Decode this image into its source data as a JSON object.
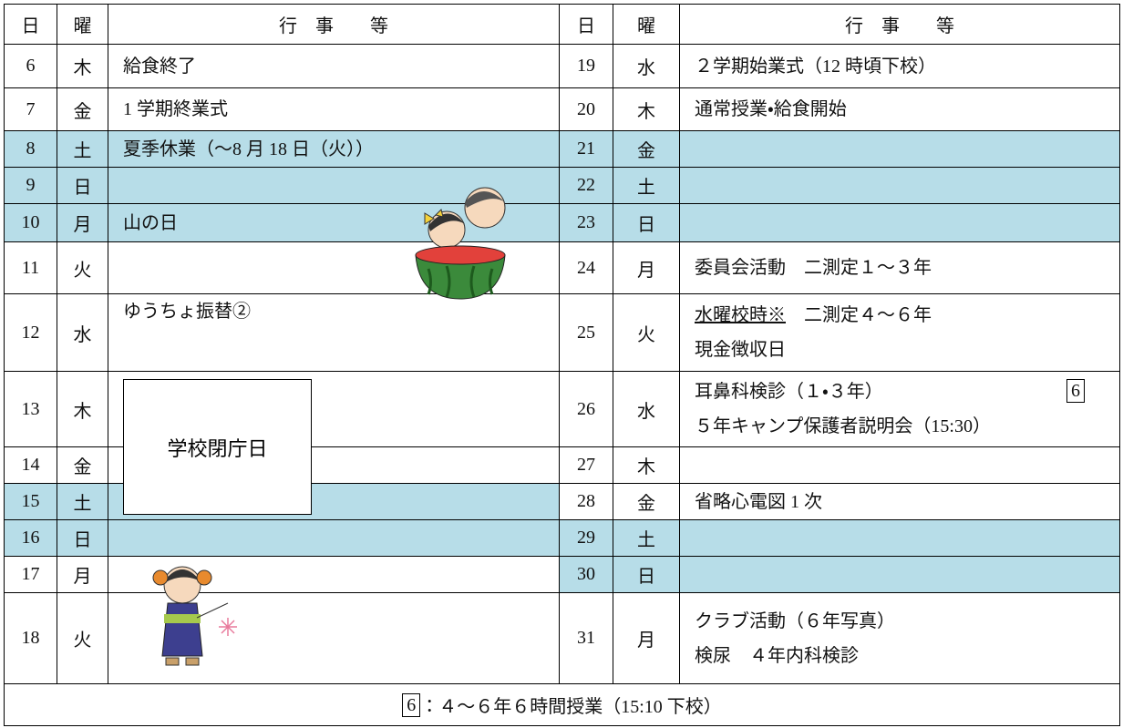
{
  "header": [
    "日",
    "曜",
    "行　事　　等",
    "日",
    "曜",
    "行　事　　等"
  ],
  "rows": [
    {
      "left": {
        "day": 6,
        "dow": "木",
        "lines": [
          "給食終了"
        ]
      },
      "right": {
        "day": 19,
        "dow": "水",
        "lines": [
          "２学期始業式（12 時頃下校）"
        ]
      }
    },
    {
      "left": {
        "day": 7,
        "dow": "金",
        "lines": [
          "1 学期終業式"
        ]
      },
      "right": {
        "day": 20,
        "dow": "木",
        "lines": [
          "通常授業・給食開始"
        ]
      }
    },
    {
      "left": {
        "day": 8,
        "dow": "土",
        "shaded": true,
        "lines": [
          "夏季休業（～8 月 18 日（火））"
        ]
      },
      "right": {
        "day": 21,
        "dow": "金",
        "shaded": true,
        "lines": []
      }
    },
    {
      "left": {
        "day": 9,
        "dow": "日",
        "shaded": true,
        "lines": []
      },
      "right": {
        "day": 22,
        "dow": "土",
        "shaded": true,
        "lines": []
      }
    },
    {
      "left": {
        "day": 10,
        "dow": "月",
        "shaded": true,
        "lines": [
          "山の日"
        ]
      },
      "right": {
        "day": 23,
        "dow": "日",
        "shaded": true,
        "lines": []
      }
    },
    {
      "left": {
        "day": 11,
        "dow": "火",
        "lines": []
      },
      "right": {
        "day": 24,
        "dow": "月",
        "lines": [
          "委員会活動　二測定１～３年"
        ]
      }
    },
    {
      "left": {
        "day": 12,
        "dow": "水",
        "lines": [
          "ゆうちょ振替②"
        ],
        "top": true
      },
      "right": {
        "day": 25,
        "dow": "火",
        "lines": [
          {
            "u": "水曜校時※",
            "text": "　二測定４～６年"
          },
          "現金徴収日"
        ]
      }
    },
    {
      "left": {
        "day": 13,
        "dow": "木",
        "lines": []
      },
      "right": {
        "day": 26,
        "dow": "水",
        "badge": "6",
        "lines": [
          "耳鼻科検診（１・３年）",
          "５年キャンプ保護者説明会（15:30）"
        ]
      }
    },
    {
      "left": {
        "day": 14,
        "dow": "金",
        "lines": []
      },
      "right": {
        "day": 27,
        "dow": "木",
        "lines": []
      }
    },
    {
      "left": {
        "day": 15,
        "dow": "土",
        "shaded": true,
        "lines": []
      },
      "right": {
        "day": 28,
        "dow": "金",
        "lines": [
          "省略心電図 1 次"
        ]
      }
    },
    {
      "left": {
        "day": 16,
        "dow": "日",
        "shaded": true,
        "lines": []
      },
      "right": {
        "day": 29,
        "dow": "土",
        "shaded": true,
        "lines": []
      }
    },
    {
      "left": {
        "day": 17,
        "dow": "月",
        "lines": []
      },
      "right": {
        "day": 30,
        "dow": "日",
        "shaded": true,
        "lines": []
      }
    },
    {
      "left": {
        "day": 18,
        "dow": "火",
        "lines": []
      },
      "right": {
        "day": 31,
        "dow": "月",
        "lines": [
          "クラブ活動（６年写真）",
          "検尿　４年内科検診"
        ]
      }
    }
  ],
  "closed_label": "学校閉庁日",
  "footer": {
    "badge": "6",
    "text": "：４～６年６時間授業（15:10 下校）"
  }
}
